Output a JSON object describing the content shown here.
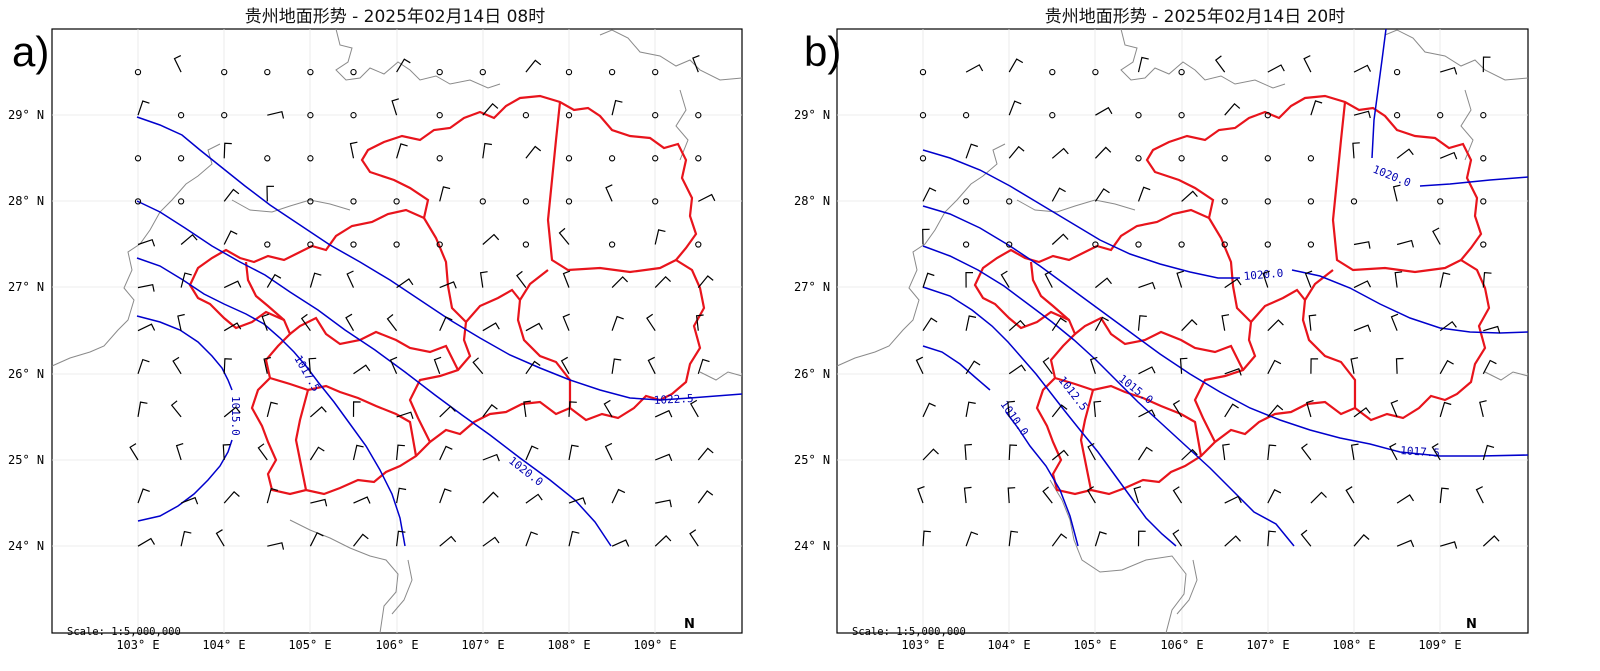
{
  "panels": [
    {
      "letter": "a)",
      "title": "贵州地面形势 - 2025年02月14日 08时",
      "scale": "Scale: 1:5,000,000",
      "north": "N",
      "lat_labels": [
        "29° N",
        "28° N",
        "27° N",
        "26° N",
        "25° N",
        "24° N"
      ],
      "lon_labels": [
        "103° E",
        "104° E",
        "105° E",
        "106° E",
        "107° E",
        "108° E",
        "109° E"
      ],
      "isobar_labels": [
        "1015.0",
        "1017.5",
        "1020.0",
        "1022.5"
      ]
    },
    {
      "letter": "b)",
      "title": "贵州地面形势 - 2025年02月14日 20时",
      "scale": "Scale: 1:5,000,000",
      "north": "N",
      "lat_labels": [
        "29° N",
        "28° N",
        "27° N",
        "26° N",
        "25° N",
        "24° N"
      ],
      "lon_labels": [
        "103° E",
        "104° E",
        "105° E",
        "106° E",
        "107° E",
        "108° E",
        "109° E"
      ],
      "isobar_labels": [
        "1010.0",
        "1012.5",
        "1015.0",
        "1017.5",
        "1020.0",
        "1020.0"
      ]
    }
  ],
  "colors": {
    "province_border": "#e8141c",
    "isobar": "#0000cc",
    "isobar_label": "#0000b0",
    "country_border": "#8a8a8a",
    "wind_barb": "#000000"
  },
  "map_extent": {
    "lon_min": 102.1,
    "lon_max": 110.1,
    "lat_min": 23.0,
    "lat_max": 30.0
  }
}
